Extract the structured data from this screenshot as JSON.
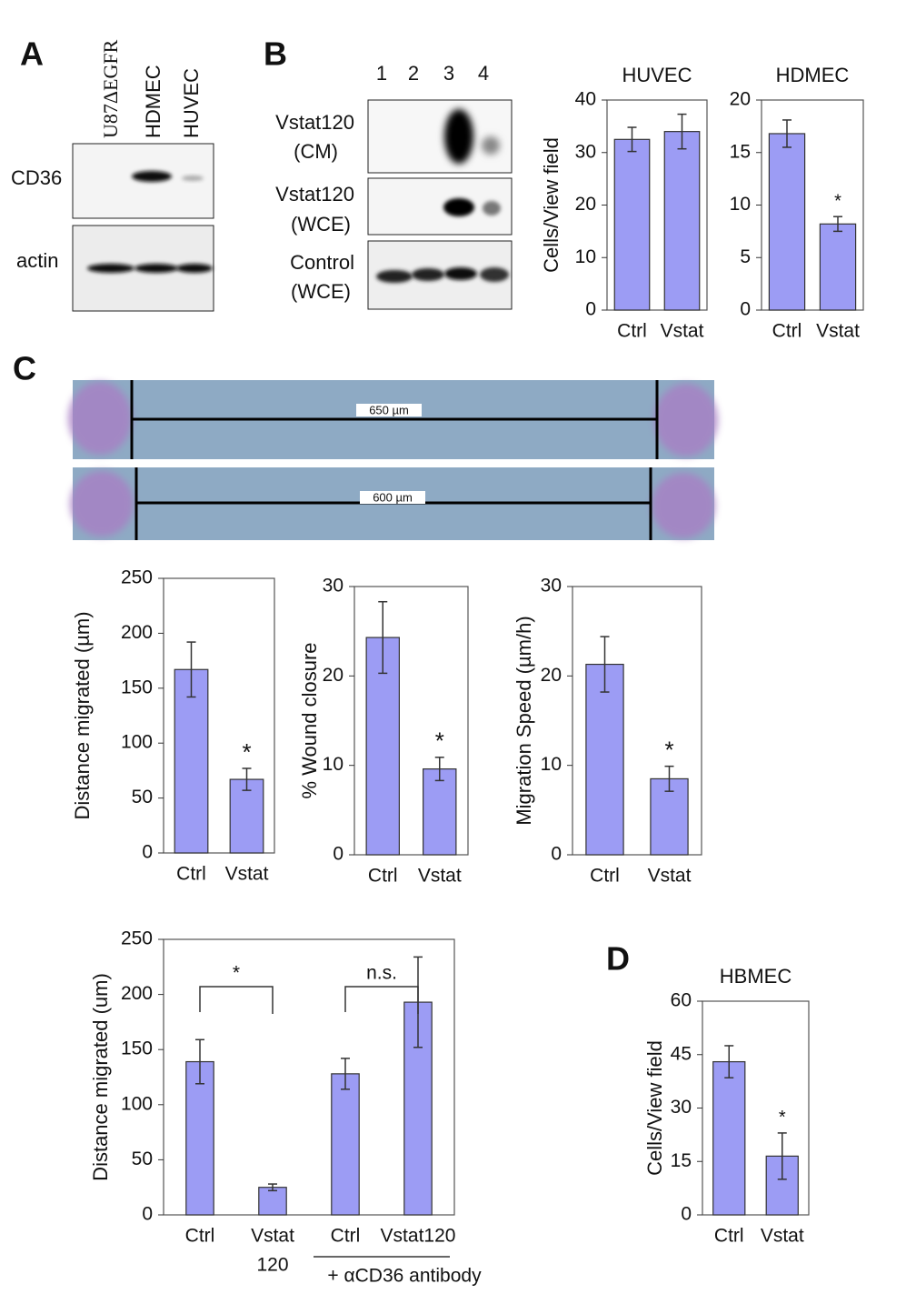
{
  "figure": {
    "panel_labels": [
      "A",
      "B",
      "C",
      "D"
    ],
    "blot_a": {
      "lanes": [
        "U87ΔEGFR",
        "HDMEC",
        "HUVEC"
      ],
      "rows": [
        "CD36",
        "actin"
      ]
    },
    "blot_b": {
      "lanes": [
        "1",
        "2",
        "3",
        "4"
      ],
      "rows": [
        [
          "Vstat120",
          "(CM)"
        ],
        [
          "Vstat120",
          "(WCE)"
        ],
        [
          "Control",
          "(WCE)"
        ]
      ]
    },
    "micrographs": [
      "650 µm",
      "600 µm"
    ]
  },
  "chart_data": [
    {
      "type": "bar",
      "title": "HUVEC",
      "y_label": "Cells/View field",
      "categories": [
        "Ctrl",
        "Vstat"
      ],
      "values": [
        32.5,
        34
      ],
      "errors": [
        2.3,
        3.3
      ],
      "markers": [
        null,
        null
      ],
      "color": "#9c9cf4",
      "ylim": [
        0,
        40
      ],
      "yticks": [
        0,
        10,
        20,
        30,
        40
      ]
    },
    {
      "type": "bar",
      "title": "HDMEC",
      "categories": [
        "Ctrl",
        "Vstat"
      ],
      "values": [
        16.8,
        8.2
      ],
      "errors": [
        1.3,
        0.7
      ],
      "markers": [
        null,
        "*"
      ],
      "color": "#9c9cf4",
      "ylim": [
        0,
        20
      ],
      "yticks": [
        0,
        5,
        10,
        15,
        20
      ]
    },
    {
      "type": "bar",
      "y_label": "Distance migrated (µm)",
      "categories": [
        "Ctrl",
        "Vstat"
      ],
      "values": [
        167,
        67
      ],
      "errors": [
        25,
        10
      ],
      "markers": [
        null,
        "*"
      ],
      "color": "#9c9cf4",
      "ylim": [
        0,
        250
      ],
      "yticks": [
        0,
        50,
        100,
        150,
        200,
        250
      ]
    },
    {
      "type": "bar",
      "y_label": "% Wound closure",
      "categories": [
        "Ctrl",
        "Vstat"
      ],
      "values": [
        24.3,
        9.6
      ],
      "errors": [
        4,
        1.3
      ],
      "markers": [
        null,
        "*"
      ],
      "color": "#9c9cf4",
      "ylim": [
        0,
        30
      ],
      "yticks": [
        0,
        10,
        20,
        30
      ]
    },
    {
      "type": "bar",
      "y_label": "Migration Speed (µm/h)",
      "categories": [
        "Ctrl",
        "Vstat"
      ],
      "values": [
        21.3,
        8.5
      ],
      "errors": [
        3.1,
        1.4
      ],
      "markers": [
        null,
        "*"
      ],
      "color": "#9c9cf4",
      "ylim": [
        0,
        30
      ],
      "yticks": [
        0,
        10,
        20,
        30
      ]
    },
    {
      "type": "bar",
      "y_label": "Distance migrated (um)",
      "categories": [
        "Ctrl",
        [
          "Vstat",
          "120"
        ],
        "Ctrl",
        "Vstat120"
      ],
      "values": [
        139,
        25,
        128,
        193
      ],
      "errors": [
        20,
        3,
        14,
        41
      ],
      "markers": [
        null,
        null,
        null,
        null
      ],
      "brackets": [
        "*",
        "n.s."
      ],
      "group_label": "+ αCD36 antibody",
      "color": "#9c9cf4",
      "ylim": [
        0,
        250
      ],
      "yticks": [
        0,
        50,
        100,
        150,
        200,
        250
      ]
    },
    {
      "type": "bar",
      "title": "HBMEC",
      "y_label": "Cells/View field",
      "categories": [
        "Ctrl",
        "Vstat"
      ],
      "values": [
        43,
        16.5
      ],
      "errors": [
        4.5,
        6.5
      ],
      "markers": [
        null,
        "*"
      ],
      "color": "#9c9cf4",
      "ylim": [
        0,
        60
      ],
      "yticks": [
        0,
        15,
        30,
        45,
        60
      ]
    }
  ]
}
